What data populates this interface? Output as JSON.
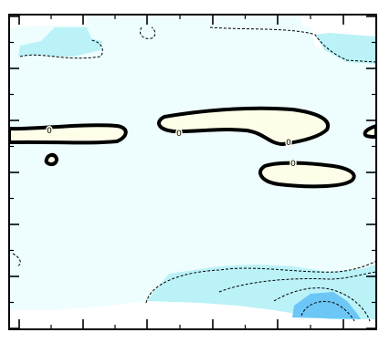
{
  "chart_data": {
    "type": "contour",
    "contour_label": "0",
    "colors": {
      "background_fill": "#eefdfd",
      "negative_light": "#baf2f8",
      "negative_mid": "#8fdff7",
      "negative_deep": "#6cc7f7",
      "positive_fill": "#fdfde8",
      "blank": "#ffffff",
      "line": "#000000"
    },
    "positive_regions": [
      {
        "label": "0"
      },
      {
        "label": "0"
      },
      {
        "label": "0"
      },
      {
        "label": ""
      }
    ],
    "negative_regions": [
      {
        "level": "light"
      },
      {
        "level": "light"
      },
      {
        "level": "mid"
      },
      {
        "level": "deep"
      }
    ],
    "grid": false,
    "axis_ticks": true,
    "tick_labels": []
  }
}
